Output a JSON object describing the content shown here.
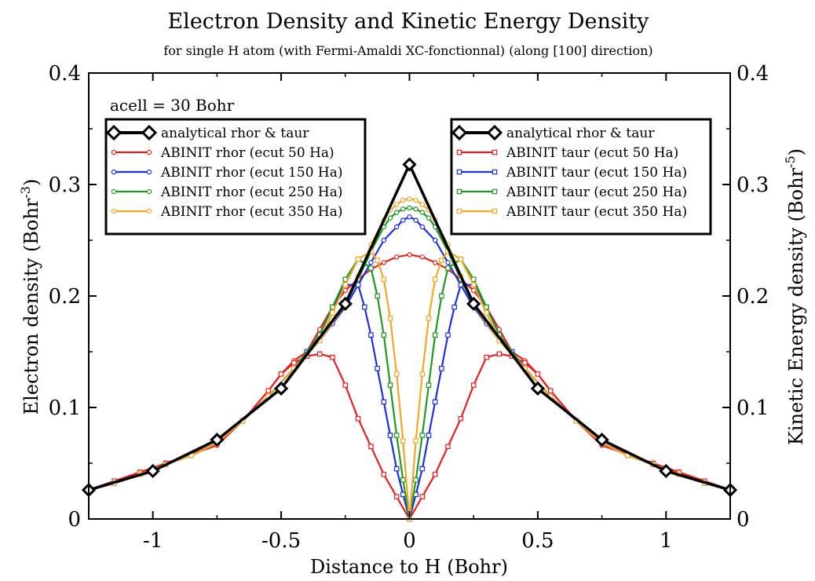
{
  "chart_data": {
    "type": "line",
    "title": "Electron Density and Kinetic Energy Density",
    "subtitle": "for single H atom (with Fermi-Amaldi XC-fonctionnal) (along [100] direction)",
    "xlabel": "Distance to H (Bohr)",
    "ylabel_left": "Electron density (Bohr",
    "ylabel_left_sup": "-3",
    "ylabel_left_close": ")",
    "ylabel_right": "Kinetic Energy density (Bohr",
    "ylabel_right_sup": "-5",
    "ylabel_right_close": ")",
    "annotation": "acell = 30 Bohr",
    "xlim": [
      -1.25,
      1.25
    ],
    "ylim": [
      0,
      0.4
    ],
    "x_ticks": [
      {
        "v": -1,
        "label": "-1"
      },
      {
        "v": -0.5,
        "label": "-0.5"
      },
      {
        "v": 0,
        "label": "0"
      },
      {
        "v": 0.5,
        "label": "0.5"
      },
      {
        "v": 1,
        "label": "1"
      }
    ],
    "y_ticks": [
      {
        "v": 0,
        "label": "0"
      },
      {
        "v": 0.1,
        "label": "0.1"
      },
      {
        "v": 0.2,
        "label": "0.2"
      },
      {
        "v": 0.3,
        "label": "0.3"
      },
      {
        "v": 0.4,
        "label": "0.4"
      }
    ],
    "grid": false,
    "legends": [
      {
        "position": "top-left",
        "entries": [
          {
            "name": "analytical rhor & taur",
            "color": "#000000",
            "marker": "diamond"
          },
          {
            "name": "ABINIT rhor (ecut 50 Ha)",
            "color": "#ee1c1c",
            "marker": "circle"
          },
          {
            "name": "ABINIT rhor (ecut 150 Ha)",
            "color": "#1c2ee8",
            "marker": "circle"
          },
          {
            "name": "ABINIT rhor (ecut 250 Ha)",
            "color": "#1e9a1e",
            "marker": "circle"
          },
          {
            "name": "ABINIT rhor (ecut 350 Ha)",
            "color": "#f5a623",
            "marker": "circle"
          }
        ]
      },
      {
        "position": "top-right",
        "entries": [
          {
            "name": "analytical rhor & taur",
            "color": "#000000",
            "marker": "diamond"
          },
          {
            "name": "ABINIT taur (ecut 50 Ha)",
            "color": "#ee1c1c",
            "marker": "square"
          },
          {
            "name": "ABINIT taur (ecut 150 Ha)",
            "color": "#1c2ee8",
            "marker": "square"
          },
          {
            "name": "ABINIT taur (ecut 250 Ha)",
            "color": "#1e9a1e",
            "marker": "square"
          },
          {
            "name": "ABINIT taur (ecut 350 Ha)",
            "color": "#f5a623",
            "marker": "square"
          }
        ]
      }
    ],
    "series": [
      {
        "name": "analytical rhor & taur",
        "color": "#000000",
        "marker": "diamond",
        "width": 3.5,
        "x": [
          -1.25,
          -1.0,
          -0.75,
          -0.5,
          -0.25,
          0.0,
          0.25,
          0.5,
          0.75,
          1.0,
          1.25
        ],
        "y": [
          0.026,
          0.043,
          0.071,
          0.117,
          0.193,
          0.318,
          0.193,
          0.117,
          0.071,
          0.043,
          0.026
        ]
      },
      {
        "name": "ABINIT rhor (ecut 50 Ha)",
        "color": "#ee1c1c",
        "marker": "circle",
        "x": [
          -1.25,
          -1.15,
          -1.05,
          -0.95,
          -0.85,
          -0.75,
          -0.65,
          -0.55,
          -0.5,
          -0.45,
          -0.4,
          -0.35,
          -0.3,
          -0.25,
          -0.2,
          -0.15,
          -0.1,
          -0.05,
          0.0,
          0.05,
          0.1,
          0.15,
          0.2,
          0.25,
          0.3,
          0.35,
          0.4,
          0.45,
          0.5,
          0.55,
          0.65,
          0.75,
          0.85,
          0.95,
          1.05,
          1.15,
          1.25
        ],
        "y": [
          0.026,
          0.034,
          0.042,
          0.05,
          0.058,
          0.066,
          0.088,
          0.115,
          0.13,
          0.142,
          0.15,
          0.17,
          0.19,
          0.205,
          0.215,
          0.224,
          0.23,
          0.235,
          0.237,
          0.235,
          0.23,
          0.224,
          0.215,
          0.205,
          0.19,
          0.17,
          0.15,
          0.142,
          0.13,
          0.115,
          0.088,
          0.066,
          0.058,
          0.05,
          0.042,
          0.034,
          0.026
        ]
      },
      {
        "name": "ABINIT rhor (ecut 150 Ha)",
        "color": "#1c2ee8",
        "marker": "circle",
        "x": [
          -1.25,
          -1.15,
          -1.05,
          -0.95,
          -0.85,
          -0.75,
          -0.65,
          -0.55,
          -0.45,
          -0.35,
          -0.3,
          -0.25,
          -0.2,
          -0.15,
          -0.1,
          -0.05,
          -0.025,
          0.0,
          0.025,
          0.05,
          0.1,
          0.15,
          0.2,
          0.25,
          0.3,
          0.35,
          0.45,
          0.55,
          0.65,
          0.75,
          0.85,
          0.95,
          1.05,
          1.15,
          1.25
        ],
        "y": [
          0.026,
          0.032,
          0.04,
          0.049,
          0.057,
          0.068,
          0.088,
          0.11,
          0.135,
          0.16,
          0.175,
          0.19,
          0.21,
          0.23,
          0.25,
          0.262,
          0.268,
          0.271,
          0.268,
          0.262,
          0.25,
          0.23,
          0.21,
          0.19,
          0.175,
          0.16,
          0.135,
          0.11,
          0.088,
          0.068,
          0.057,
          0.049,
          0.04,
          0.032,
          0.026
        ]
      },
      {
        "name": "ABINIT rhor (ecut 250 Ha)",
        "color": "#1e9a1e",
        "marker": "circle",
        "x": [
          -1.25,
          -1.15,
          -1.05,
          -0.95,
          -0.85,
          -0.75,
          -0.65,
          -0.55,
          -0.45,
          -0.35,
          -0.25,
          -0.2,
          -0.15,
          -0.1,
          -0.075,
          -0.05,
          -0.025,
          0.0,
          0.025,
          0.05,
          0.075,
          0.1,
          0.15,
          0.2,
          0.25,
          0.35,
          0.45,
          0.55,
          0.65,
          0.75,
          0.85,
          0.95,
          1.05,
          1.15,
          1.25
        ],
        "y": [
          0.026,
          0.032,
          0.04,
          0.049,
          0.057,
          0.068,
          0.088,
          0.11,
          0.135,
          0.16,
          0.192,
          0.215,
          0.24,
          0.262,
          0.27,
          0.275,
          0.278,
          0.279,
          0.278,
          0.275,
          0.27,
          0.262,
          0.24,
          0.215,
          0.192,
          0.16,
          0.135,
          0.11,
          0.088,
          0.068,
          0.057,
          0.049,
          0.04,
          0.032,
          0.026
        ]
      },
      {
        "name": "ABINIT rhor (ecut 350 Ha)",
        "color": "#f5a623",
        "marker": "circle",
        "x": [
          -1.25,
          -1.15,
          -1.05,
          -0.95,
          -0.85,
          -0.75,
          -0.65,
          -0.55,
          -0.45,
          -0.35,
          -0.25,
          -0.2,
          -0.15,
          -0.1,
          -0.075,
          -0.05,
          -0.025,
          0.0,
          0.025,
          0.05,
          0.075,
          0.1,
          0.15,
          0.2,
          0.25,
          0.35,
          0.45,
          0.55,
          0.65,
          0.75,
          0.85,
          0.95,
          1.05,
          1.15,
          1.25
        ],
        "y": [
          0.026,
          0.032,
          0.04,
          0.049,
          0.057,
          0.068,
          0.088,
          0.11,
          0.135,
          0.16,
          0.192,
          0.218,
          0.246,
          0.268,
          0.277,
          0.282,
          0.286,
          0.287,
          0.286,
          0.282,
          0.277,
          0.268,
          0.246,
          0.218,
          0.192,
          0.16,
          0.135,
          0.11,
          0.088,
          0.068,
          0.057,
          0.049,
          0.04,
          0.032,
          0.026
        ]
      },
      {
        "name": "ABINIT taur (ecut 50 Ha)",
        "color": "#ee1c1c",
        "marker": "square",
        "x": [
          -1.25,
          -1.15,
          -1.05,
          -0.95,
          -0.85,
          -0.75,
          -0.65,
          -0.55,
          -0.5,
          -0.45,
          -0.4,
          -0.35,
          -0.3,
          -0.25,
          -0.2,
          -0.15,
          -0.1,
          -0.05,
          0.0,
          0.05,
          0.1,
          0.15,
          0.2,
          0.25,
          0.3,
          0.35,
          0.4,
          0.45,
          0.5,
          0.55,
          0.65,
          0.75,
          0.85,
          0.95,
          1.05,
          1.15,
          1.25
        ],
        "y": [
          0.026,
          0.034,
          0.042,
          0.05,
          0.058,
          0.068,
          0.088,
          0.115,
          0.13,
          0.14,
          0.146,
          0.148,
          0.145,
          0.12,
          0.09,
          0.065,
          0.04,
          0.02,
          0.0,
          0.02,
          0.04,
          0.065,
          0.09,
          0.12,
          0.145,
          0.148,
          0.146,
          0.14,
          0.13,
          0.115,
          0.088,
          0.068,
          0.058,
          0.05,
          0.042,
          0.034,
          0.026
        ]
      },
      {
        "name": "ABINIT taur (ecut 150 Ha)",
        "color": "#1c2ee8",
        "marker": "square",
        "x": [
          -1.25,
          -1.15,
          -1.05,
          -0.95,
          -0.85,
          -0.75,
          -0.65,
          -0.55,
          -0.45,
          -0.4,
          -0.35,
          -0.3,
          -0.25,
          -0.2,
          -0.175,
          -0.15,
          -0.125,
          -0.1,
          -0.075,
          -0.05,
          -0.025,
          0.0,
          0.025,
          0.05,
          0.075,
          0.1,
          0.125,
          0.15,
          0.175,
          0.2,
          0.25,
          0.3,
          0.35,
          0.4,
          0.45,
          0.55,
          0.65,
          0.75,
          0.85,
          0.95,
          1.05,
          1.15,
          1.25
        ],
        "y": [
          0.026,
          0.032,
          0.04,
          0.049,
          0.057,
          0.068,
          0.088,
          0.11,
          0.135,
          0.15,
          0.165,
          0.19,
          0.21,
          0.21,
          0.19,
          0.165,
          0.135,
          0.105,
          0.075,
          0.045,
          0.022,
          0.0,
          0.022,
          0.045,
          0.075,
          0.105,
          0.135,
          0.165,
          0.19,
          0.21,
          0.21,
          0.19,
          0.165,
          0.15,
          0.135,
          0.11,
          0.088,
          0.068,
          0.057,
          0.049,
          0.04,
          0.032,
          0.026
        ]
      },
      {
        "name": "ABINIT taur (ecut 250 Ha)",
        "color": "#1e9a1e",
        "marker": "square",
        "x": [
          -1.25,
          -1.15,
          -1.05,
          -0.95,
          -0.85,
          -0.75,
          -0.65,
          -0.55,
          -0.45,
          -0.35,
          -0.3,
          -0.25,
          -0.2,
          -0.15,
          -0.125,
          -0.1,
          -0.075,
          -0.05,
          -0.025,
          0.0,
          0.025,
          0.05,
          0.075,
          0.1,
          0.125,
          0.15,
          0.2,
          0.25,
          0.3,
          0.35,
          0.45,
          0.55,
          0.65,
          0.75,
          0.85,
          0.95,
          1.05,
          1.15,
          1.25
        ],
        "y": [
          0.026,
          0.032,
          0.04,
          0.049,
          0.057,
          0.068,
          0.088,
          0.11,
          0.135,
          0.165,
          0.19,
          0.215,
          0.233,
          0.225,
          0.2,
          0.165,
          0.12,
          0.075,
          0.035,
          0.0,
          0.035,
          0.075,
          0.12,
          0.165,
          0.2,
          0.225,
          0.233,
          0.215,
          0.19,
          0.165,
          0.135,
          0.11,
          0.088,
          0.068,
          0.057,
          0.049,
          0.04,
          0.032,
          0.026
        ]
      },
      {
        "name": "ABINIT taur (ecut 350 Ha)",
        "color": "#f5a623",
        "marker": "square",
        "x": [
          -1.25,
          -1.15,
          -1.05,
          -0.95,
          -0.85,
          -0.75,
          -0.65,
          -0.55,
          -0.45,
          -0.35,
          -0.3,
          -0.25,
          -0.2,
          -0.15,
          -0.125,
          -0.1,
          -0.075,
          -0.05,
          -0.025,
          0.0,
          0.025,
          0.05,
          0.075,
          0.1,
          0.125,
          0.15,
          0.2,
          0.25,
          0.3,
          0.35,
          0.45,
          0.55,
          0.65,
          0.75,
          0.85,
          0.95,
          1.05,
          1.15,
          1.25
        ],
        "y": [
          0.026,
          0.032,
          0.04,
          0.049,
          0.057,
          0.068,
          0.088,
          0.11,
          0.135,
          0.16,
          0.185,
          0.21,
          0.233,
          0.24,
          0.232,
          0.215,
          0.18,
          0.13,
          0.07,
          0.0,
          0.07,
          0.13,
          0.18,
          0.215,
          0.232,
          0.24,
          0.233,
          0.21,
          0.185,
          0.16,
          0.135,
          0.11,
          0.088,
          0.068,
          0.057,
          0.049,
          0.04,
          0.032,
          0.026
        ]
      }
    ]
  }
}
